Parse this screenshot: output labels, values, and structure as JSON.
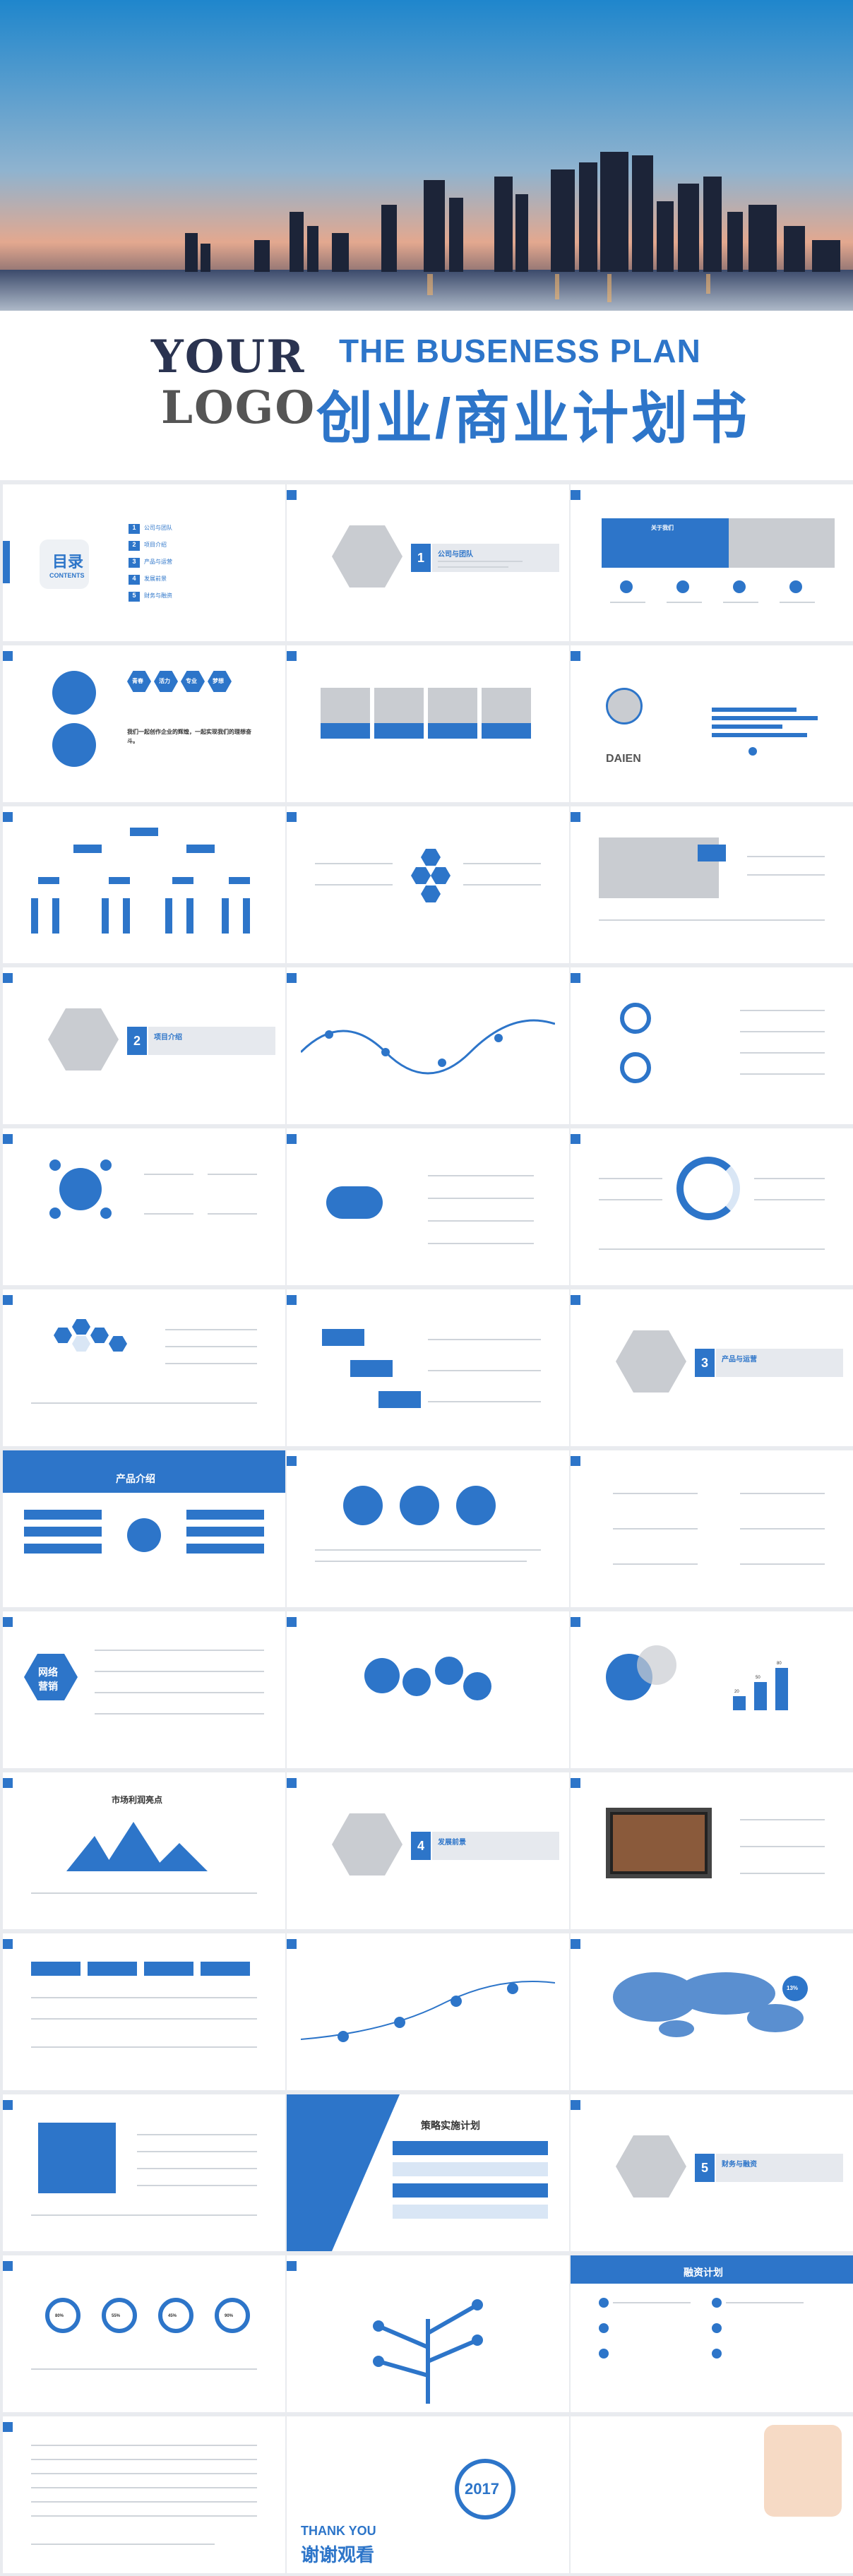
{
  "cover": {
    "logo_line1": "YOUR",
    "logo_line2": "LOGO",
    "title_en": "THE BUSENESS PLAN",
    "title_cn": "创业/商业计划书"
  },
  "toc": {
    "title": "目录",
    "subtitle": "CONTENTS",
    "items": [
      "公司与团队",
      "项目介绍",
      "产品与运营",
      "发展前景",
      "财务与融资"
    ]
  },
  "section_labels": [
    {
      "num": "1",
      "label": "公司与团队"
    },
    {
      "num": "2",
      "label": "项目介绍"
    },
    {
      "num": "3",
      "label": "产品与运营"
    },
    {
      "num": "4",
      "label": "发展前景"
    },
    {
      "num": "5",
      "label": "财务与融资"
    }
  ],
  "keywords": [
    "青春",
    "活力",
    "专业",
    "梦想"
  ],
  "slogan": "我们一起创作企业的辉煌，一起实现我们的理想奋斗。",
  "profile_name": "DAIEN",
  "market": "市场利润亮点",
  "network": [
    "网络",
    "营销"
  ],
  "strategy": "策略实施计划",
  "financing": "融资计划",
  "intro": "产品介绍",
  "about": "关于我们",
  "year": "2017",
  "thanks_en": "THANK YOU",
  "thanks_cn": "谢谢观看",
  "pct": [
    "13%",
    "20",
    "50",
    "80"
  ],
  "circles_pct": [
    "80%",
    "55%",
    "45%",
    "90%"
  ],
  "colors": {
    "accent": "#2d75c9",
    "light": "#d9e6f5"
  }
}
